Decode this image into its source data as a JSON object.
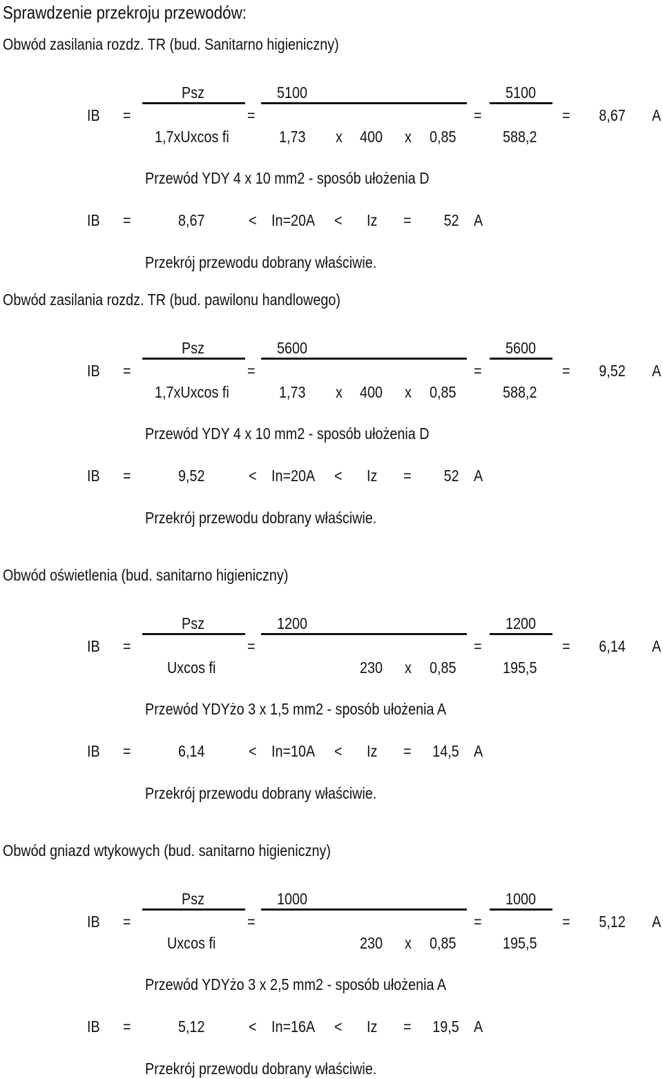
{
  "page_title": "Sprawdzenie przekroju przewodów:",
  "sections": [
    {
      "header": "Obwód zasilania rozdz. TR (bud. Sanitarno higieniczny)",
      "ib": "IB",
      "eq": "=",
      "f1_num": "Psz",
      "f1_den": "1,7xUxcos fi",
      "f2_num": "5100",
      "f2_den": {
        "a": "1,73",
        "x1": "x",
        "b": "400",
        "x2": "x",
        "c": "0,85"
      },
      "f3_num": "5100",
      "f3_den": "588,2",
      "result": "8,67",
      "unit": "A",
      "cable": "Przewód  YDY 4 x 10 mm2 - sposób ułożenia D",
      "check": {
        "ib": "IB",
        "eq": "=",
        "val": "8,67",
        "lt1": "<",
        "in": "In=20A",
        "lt2": "<",
        "iz": "Iz",
        "eq2": "=",
        "izv": "52",
        "unit": "A"
      },
      "conclusion": "Przekrój przewodu  dobrany właściwie."
    },
    {
      "header": "Obwód zasilania rozdz. TR (bud. pawilonu handlowego)",
      "ib": "IB",
      "eq": "=",
      "f1_num": "Psz",
      "f1_den": "1,7xUxcos fi",
      "f2_num": "5600",
      "f2_den": {
        "a": "1,73",
        "x1": "x",
        "b": "400",
        "x2": "x",
        "c": "0,85"
      },
      "f3_num": "5600",
      "f3_den": "588,2",
      "result": "9,52",
      "unit": "A",
      "cable": "Przewód  YDY 4 x 10 mm2 - sposób ułożenia D",
      "check": {
        "ib": "IB",
        "eq": "=",
        "val": "9,52",
        "lt1": "<",
        "in": "In=20A",
        "lt2": "<",
        "iz": "Iz",
        "eq2": "=",
        "izv": "52",
        "unit": "A"
      },
      "conclusion": "Przekrój przewodu  dobrany właściwie."
    },
    {
      "header": "Obwód oświetlenia (bud. sanitarno higieniczny)",
      "ib": "IB",
      "eq": "=",
      "f1_num": "Psz",
      "f1_den": "Uxcos fi",
      "f2_num": "1200",
      "f2_den": {
        "b": "230",
        "x2": "x",
        "c": "0,85"
      },
      "f3_num": "1200",
      "f3_den": "195,5",
      "result": "6,14",
      "unit": "A",
      "cable": "Przewód  YDYżo 3 x 1,5 mm2 - sposób ułożenia A",
      "check": {
        "ib": "IB",
        "eq": "=",
        "val": "6,14",
        "lt1": "<",
        "in": "In=10A",
        "lt2": "<",
        "iz": "Iz",
        "eq2": "=",
        "izv": "14,5",
        "unit": "A"
      },
      "conclusion": "Przekrój przewodu  dobrany właściwie."
    },
    {
      "header": "Obwód gniazd wtykowych (bud. sanitarno higieniczny)",
      "ib": "IB",
      "eq": "=",
      "f1_num": "Psz",
      "f1_den": "Uxcos fi",
      "f2_num": "1000",
      "f2_den": {
        "b": "230",
        "x2": "x",
        "c": "0,85"
      },
      "f3_num": "1000",
      "f3_den": "195,5",
      "result": "5,12",
      "unit": "A",
      "cable": "Przewód  YDYżo 3 x 2,5 mm2 - sposób ułożenia A",
      "check": {
        "ib": "IB",
        "eq": "=",
        "val": "5,12",
        "lt1": "<",
        "in": "In=16A",
        "lt2": "<",
        "iz": "Iz",
        "eq2": "=",
        "izv": "19,5",
        "unit": "A"
      },
      "conclusion": "Przekrój przewodu  dobrany właściwie."
    }
  ]
}
